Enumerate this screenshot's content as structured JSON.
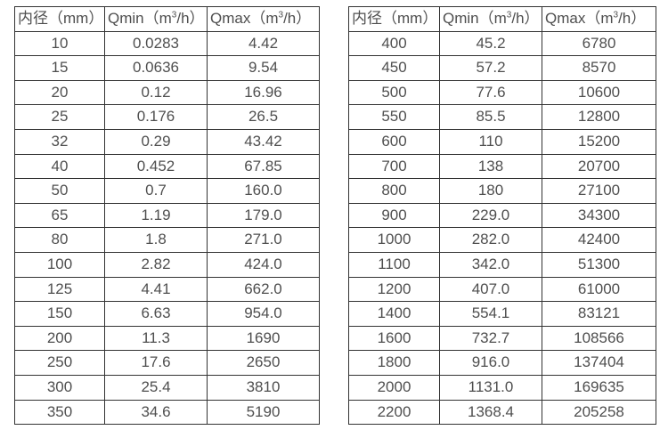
{
  "colors": {
    "border": "#333333",
    "text": "#4f4f4f",
    "background": "#ffffff"
  },
  "table_left": {
    "headers": [
      {
        "id": "diameter",
        "pre": "内径（mm）",
        "sup": "",
        "post": ""
      },
      {
        "id": "qmin",
        "pre": "Qmin（m",
        "sup": "3",
        "post": "/h）"
      },
      {
        "id": "qmax",
        "pre": "Qmax（m",
        "sup": "3",
        "post": "/h）"
      }
    ],
    "rows": [
      [
        "10",
        "0.0283",
        "4.42"
      ],
      [
        "15",
        "0.0636",
        "9.54"
      ],
      [
        "20",
        "0.12",
        "16.96"
      ],
      [
        "25",
        "0.176",
        "26.5"
      ],
      [
        "32",
        "0.29",
        "43.42"
      ],
      [
        "40",
        "0.452",
        "67.85"
      ],
      [
        "50",
        "0.7",
        "160.0"
      ],
      [
        "65",
        "1.19",
        "179.0"
      ],
      [
        "80",
        "1.8",
        "271.0"
      ],
      [
        "100",
        "2.82",
        "424.0"
      ],
      [
        "125",
        "4.41",
        "662.0"
      ],
      [
        "150",
        "6.63",
        "954.0"
      ],
      [
        "200",
        "11.3",
        "1690"
      ],
      [
        "250",
        "17.6",
        "2650"
      ],
      [
        "300",
        "25.4",
        "3810"
      ],
      [
        "350",
        "34.6",
        "5190"
      ]
    ]
  },
  "table_right": {
    "headers": [
      {
        "id": "diameter",
        "pre": "内径（mm）",
        "sup": "",
        "post": ""
      },
      {
        "id": "qmin",
        "pre": "Qmin（m",
        "sup": "3",
        "post": "/h）"
      },
      {
        "id": "qmax",
        "pre": "Qmax（m",
        "sup": "3",
        "post": "/h）"
      }
    ],
    "rows": [
      [
        "400",
        "45.2",
        "6780"
      ],
      [
        "450",
        "57.2",
        "8570"
      ],
      [
        "500",
        "77.6",
        "10600"
      ],
      [
        "550",
        "85.5",
        "12800"
      ],
      [
        "600",
        "110",
        "15200"
      ],
      [
        "700",
        "138",
        "20700"
      ],
      [
        "800",
        "180",
        "27100"
      ],
      [
        "900",
        "229.0",
        "34300"
      ],
      [
        "1000",
        "282.0",
        "42400"
      ],
      [
        "1100",
        "342.0",
        "51300"
      ],
      [
        "1200",
        "407.0",
        "61000"
      ],
      [
        "1400",
        "554.1",
        "83121"
      ],
      [
        "1600",
        "732.7",
        "108566"
      ],
      [
        "1800",
        "916.0",
        "137404"
      ],
      [
        "2000",
        "1131.0",
        "169635"
      ],
      [
        "2200",
        "1368.4",
        "205258"
      ]
    ]
  }
}
